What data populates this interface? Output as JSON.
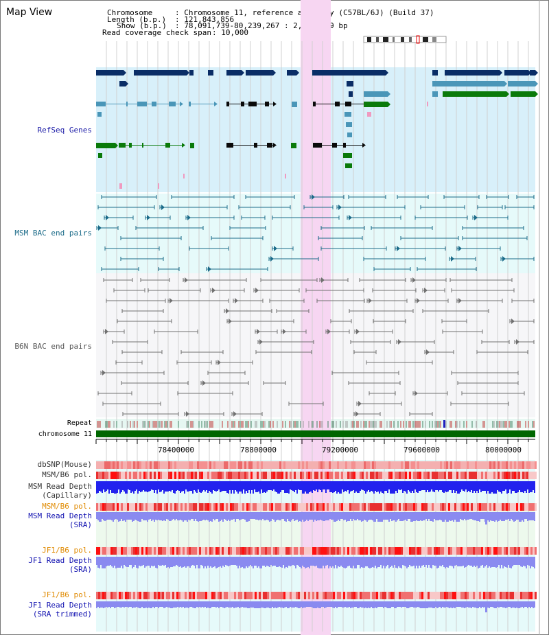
{
  "header": {
    "title": "Map View",
    "chromosome_key": "Chromosome",
    "chromosome_val": ": Chromosome 11, reference assembly (C57BL/6J) (Build 37)",
    "length_key": "Length (b.p.)",
    "length_val": ": 121,843,856",
    "show_key": "Show (b.p.)",
    "show_val": ": 78,091,739-80,239,267 : 2,147,529 bp",
    "span_key": "Read coverage check span",
    "span_val": ": 10,000"
  },
  "tracks": {
    "refseq": "RefSeq Genes",
    "msm_bac": "MSM BAC end pairs",
    "b6n_bac": "B6N BAC end pairs",
    "repeat": "Repeat",
    "chromosome": "chromosome 11",
    "dbsnp": "dbSNP(Mouse)",
    "msm_b6_pol_a": "MSM/B6 pol.",
    "msm_depth_cap_1": "MSM Read Depth",
    "msm_depth_cap_2": "(Capillary)",
    "msm_b6_pol_b": "MSM/B6 pol.",
    "msm_depth_sra_1": "MSM Read Depth",
    "msm_depth_sra_2": "(SRA)",
    "jf1_pol_a": "JF1/B6 pol.",
    "jf1_depth_sra_1": "JF1 Read Depth",
    "jf1_depth_sra_2": "(SRA)",
    "jf1_pol_b": "JF1/B6 pol.",
    "jf1_depth_trim_1": "JF1 Read Depth",
    "jf1_depth_trim_2": "(SRA trimmed)"
  },
  "axis": {
    "ticks": [
      "78400000",
      "78800000",
      "79200000",
      "79600000",
      "80000000"
    ]
  },
  "colors": {
    "refseq_label": "#1a1aa6",
    "msm_bac_label": "#1a6a88",
    "b6n_bac_label": "#555555",
    "pol_label_orange": "#e08a00",
    "depth_label_blue": "#1010b0",
    "highlight": "#f7d6f2",
    "refseq_bg": "#d8f0fa",
    "msm_bg": "#e6fafa",
    "b6n_bg": "#f6f6f8",
    "chromosome_bar": "#006600",
    "navy": "#0a2d66",
    "teal": "#4a96b8",
    "green": "#0a7a0a",
    "depth_blue": "#2222ee",
    "depth_light": "#8a8af0"
  }
}
